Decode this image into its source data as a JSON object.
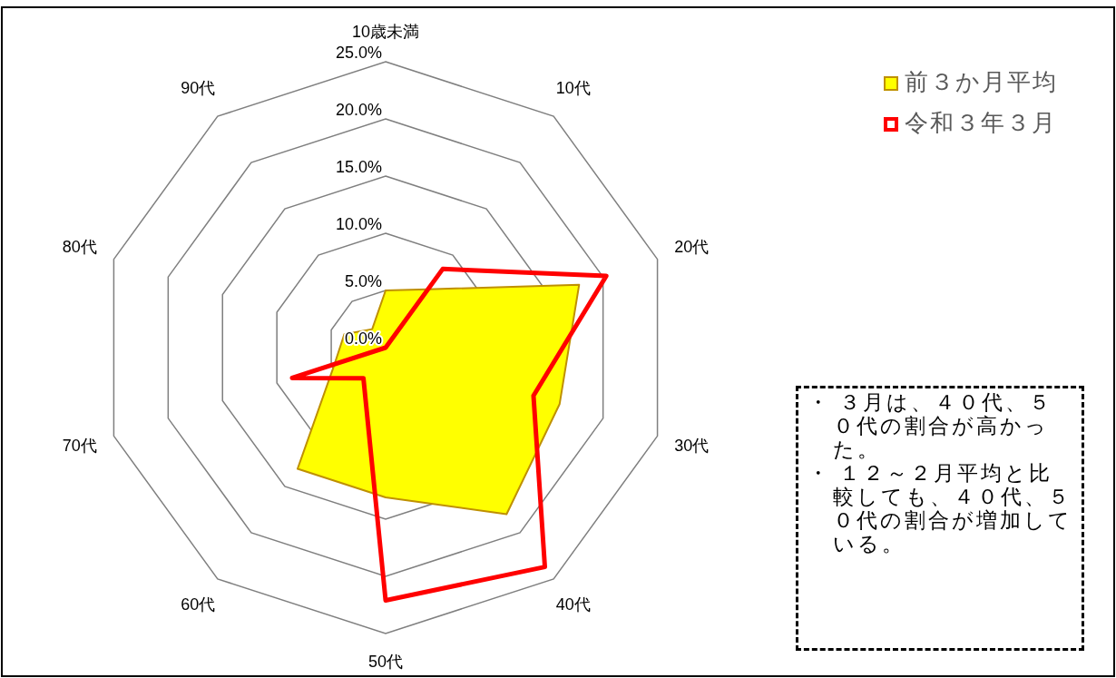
{
  "chart_data": {
    "type": "radar",
    "categories": [
      "10歳未満",
      "10代",
      "20代",
      "30代",
      "40代",
      "50代",
      "60代",
      "70代",
      "80代",
      "90代"
    ],
    "series": [
      {
        "name": "前３か月平均",
        "type": "area",
        "color": "#ffff00",
        "values": [
          5.0,
          6.3,
          17.8,
          16.0,
          18.0,
          13.1,
          13.1,
          4.7,
          3.8,
          2.0
        ]
      },
      {
        "name": "令和３年３月",
        "color": "#ff0000",
        "values": [
          0,
          8.5,
          20.3,
          13.6,
          23.7,
          22.1,
          3.3,
          8.6,
          0,
          0
        ]
      }
    ],
    "ylim": [
      0,
      25
    ],
    "yticks": [
      {
        "value": 0,
        "label": "0.0%"
      },
      {
        "value": 5,
        "label": "5.0%"
      },
      {
        "value": 10,
        "label": "10.0%"
      },
      {
        "value": 15,
        "label": "15.0%"
      },
      {
        "value": 20,
        "label": "20.0%"
      },
      {
        "value": 25,
        "label": "25.0%"
      }
    ],
    "legend": "top right",
    "annotations": [
      "・ ３月は、４０代、５０代の割合が高かった。",
      "・ １２～２月平均と比較しても、４０代、５０代の割合が増加している。"
    ]
  }
}
